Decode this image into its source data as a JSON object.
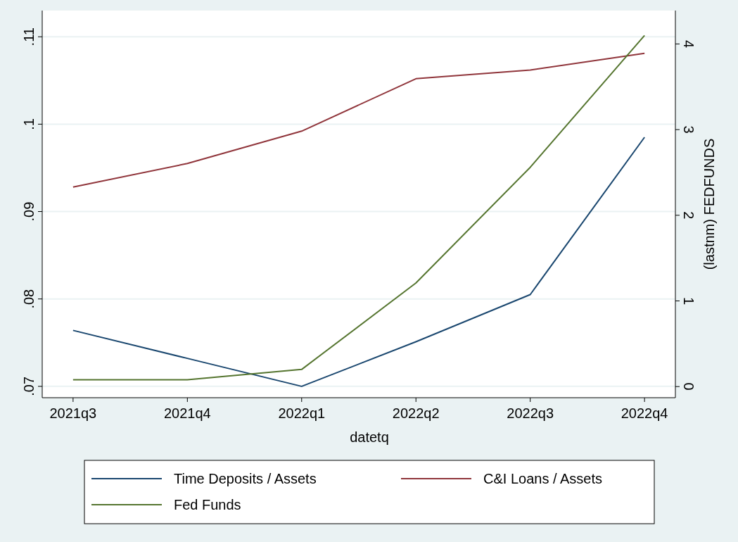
{
  "chart_data": {
    "type": "line",
    "xlabel": "datetq",
    "y2label": "(lastnm) FEDFUNDS",
    "categories": [
      "2021q3",
      "2021q4",
      "2022q1",
      "2022q2",
      "2022q3",
      "2022q4"
    ],
    "series": [
      {
        "name": "Time Deposits / Assets",
        "color": "#1a476f",
        "values": [
          0.0764,
          0.0732,
          0.07,
          0.0751,
          0.0805,
          0.0985
        ]
      },
      {
        "name": "C&I Loans / Assets",
        "color": "#90353b",
        "values": [
          0.0928,
          0.0955,
          0.0992,
          0.1052,
          0.1062,
          0.1081
        ]
      },
      {
        "name": "Fed Funds",
        "color": "#55752f",
        "axis": "y2",
        "values": [
          0.08,
          0.08,
          0.2,
          1.21,
          2.56,
          4.1
        ]
      }
    ],
    "ylim": [
      0.0687,
      0.113
    ],
    "yticks": [
      {
        "value": 0.07,
        "label": ".07"
      },
      {
        "value": 0.08,
        "label": ".08"
      },
      {
        "value": 0.09,
        "label": ".09"
      },
      {
        "value": 0.1,
        "label": ".1"
      },
      {
        "value": 0.11,
        "label": ".11"
      }
    ],
    "y2lim": [
      -0.13,
      4.39
    ],
    "y2ticks": [
      0,
      1,
      2,
      3,
      4
    ],
    "grid": "y",
    "legend": "bottom",
    "marker": "none",
    "line_style": "solid"
  }
}
